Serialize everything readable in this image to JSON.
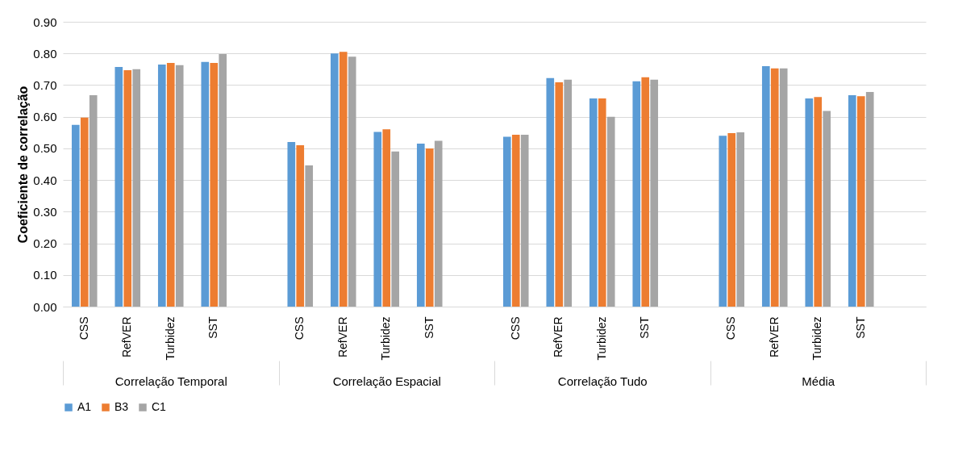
{
  "chart_data": {
    "type": "bar",
    "ylabel": "Coeficiente de correlação",
    "categories": [
      "CSS",
      "RefVER",
      "Turbidez",
      "SST",
      null,
      "CSS",
      "RefVER",
      "Turbidez",
      "SST",
      null,
      "CSS",
      "RefVER",
      "Turbidez",
      "SST",
      null,
      "CSS",
      "RefVER",
      "Turbidez",
      "SST",
      null
    ],
    "annotations": [
      "Correlação Temporal",
      "Correlação Espacial",
      "Correlação Tudo",
      "Média"
    ],
    "series": [
      {
        "name": "A1",
        "color": "#5b9bd5",
        "values": [
          0.574,
          0.757,
          0.765,
          0.773,
          null,
          0.52,
          0.8,
          0.552,
          0.515,
          null,
          0.537,
          0.722,
          0.658,
          0.712,
          null,
          0.54,
          0.76,
          0.658,
          0.668,
          null
        ]
      },
      {
        "name": "B3",
        "color": "#ed7d31",
        "values": [
          0.597,
          0.747,
          0.77,
          0.77,
          null,
          0.51,
          0.805,
          0.56,
          0.5,
          null,
          0.543,
          0.709,
          0.658,
          0.725,
          null,
          0.548,
          0.753,
          0.662,
          0.665,
          null
        ]
      },
      {
        "name": "C1",
        "color": "#a5a5a5",
        "values": [
          0.668,
          0.75,
          0.763,
          0.798,
          null,
          0.446,
          0.79,
          0.49,
          0.524,
          null,
          0.543,
          0.717,
          0.6,
          0.717,
          null,
          0.551,
          0.753,
          0.618,
          0.678,
          null
        ]
      }
    ],
    "ylim": [
      0,
      0.9
    ],
    "yticks": [
      {
        "value": 0,
        "label": "0.00"
      },
      {
        "value": 0.1,
        "label": "0.10"
      },
      {
        "value": 0.2,
        "label": "0.20"
      },
      {
        "value": 0.3,
        "label": "0.30"
      },
      {
        "value": 0.4,
        "label": "0.40"
      },
      {
        "value": 0.5,
        "label": "0.50"
      },
      {
        "value": 0.6,
        "label": "0.60"
      },
      {
        "value": 0.7,
        "label": "0.70"
      },
      {
        "value": 0.8,
        "label": "0.80"
      },
      {
        "value": 0.9,
        "label": "0.90"
      }
    ],
    "grid": "y",
    "legend": "bottom"
  }
}
